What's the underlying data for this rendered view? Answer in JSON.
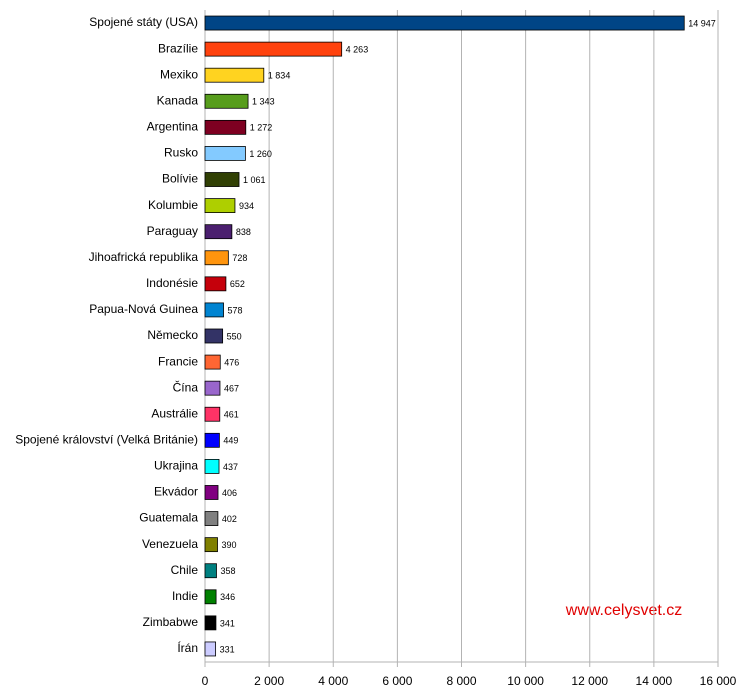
{
  "chart_data": {
    "type": "hbar",
    "categories": [
      "Spojené státy (USA)",
      "Brazílie",
      "Mexiko",
      "Kanada",
      "Argentina",
      "Rusko",
      "Bolívie",
      "Kolumbie",
      "Paraguay",
      "Jihoafrická republika",
      "Indonésie",
      "Papua-Nová Guinea",
      "Německo",
      "Francie",
      "Čína",
      "Austrálie",
      "Spojené království (Velká Británie)",
      "Ukrajina",
      "Ekvádor",
      "Guatemala",
      "Venezuela",
      "Chile",
      "Indie",
      "Zimbabwe",
      "Írán"
    ],
    "values": [
      14947,
      4263,
      1834,
      1343,
      1272,
      1260,
      1061,
      934,
      838,
      728,
      652,
      578,
      550,
      476,
      467,
      461,
      449,
      437,
      406,
      402,
      390,
      358,
      346,
      341,
      331
    ],
    "value_labels": [
      "14 947",
      "4 263",
      "1 834",
      "1 343",
      "1 272",
      "1 260",
      "1 061",
      "934",
      "838",
      "728",
      "652",
      "578",
      "550",
      "476",
      "467",
      "461",
      "449",
      "437",
      "406",
      "402",
      "390",
      "358",
      "346",
      "341",
      "331"
    ],
    "colors": [
      "#004586",
      "#ff420e",
      "#ffd320",
      "#579d1c",
      "#7e0021",
      "#83caff",
      "#314004",
      "#aecf00",
      "#4b1f6f",
      "#ff950e",
      "#c5000b",
      "#0084d1",
      "#333366",
      "#ff6633",
      "#9966cc",
      "#ff3366",
      "#0000ff",
      "#00ffff",
      "#800080",
      "#808080",
      "#808000",
      "#008080",
      "#008000",
      "#000000",
      "#ccccff"
    ],
    "xlim": [
      0,
      16000
    ],
    "xticks": [
      0,
      {
        "value": 2000,
        "label": "2 000"
      },
      {
        "value": 4000,
        "label": "4 000"
      },
      {
        "value": 6000,
        "label": "6 000"
      },
      {
        "value": 8000,
        "label": "8 000"
      },
      {
        "value": 10000,
        "label": "10 000"
      },
      {
        "value": 12000,
        "label": "12 000"
      },
      {
        "value": 14000,
        "label": "14 000"
      },
      {
        "value": 16000,
        "label": "16 000"
      }
    ],
    "grid": true,
    "watermark": "www.celysvet.cz"
  }
}
